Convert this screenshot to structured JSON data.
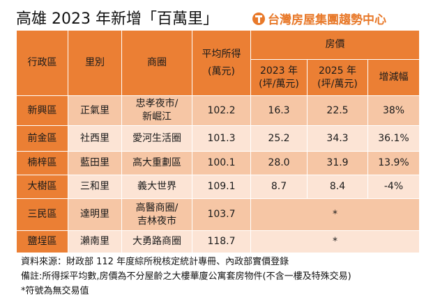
{
  "title": "高雄 2023 年新增「百萬里」",
  "logo_text": "台灣房屋集團趨勢中心",
  "colors": {
    "header": "#eb7f34",
    "row_dark": "#f6c6a5",
    "row_light": "#fce4d5",
    "logo": "#e8792a"
  },
  "table": {
    "headers": {
      "district": "行政區",
      "village": "里別",
      "business_area": "商圈",
      "income": "平均所得",
      "income_unit": "(萬元)",
      "price_group": "房價",
      "y2023": "2023 年",
      "y2023_unit": "(坪/萬元)",
      "y2025": "2025 年",
      "y2025_unit": "(坪/萬元)",
      "change": "增減幅"
    },
    "rows": [
      {
        "district": "新興區",
        "village": "正氣里",
        "area1": "忠孝夜市/",
        "area2": "新崛江",
        "income": "102.2",
        "p2023": "16.3",
        "p2025": "22.5",
        "change": "38%"
      },
      {
        "district": "前金區",
        "village": "社西里",
        "area1": "愛河生活圈",
        "area2": "",
        "income": "101.3",
        "p2023": "25.2",
        "p2025": "34.3",
        "change": "36.1%"
      },
      {
        "district": "楠梓區",
        "village": "藍田里",
        "area1": "高大重劃區",
        "area2": "",
        "income": "100.1",
        "p2023": "28.0",
        "p2025": "31.9",
        "change": "13.9%"
      },
      {
        "district": "大樹區",
        "village": "三和里",
        "area1": "義大世界",
        "area2": "",
        "income": "109.1",
        "p2023": "8.7",
        "p2025": "8.4",
        "change": "-4%"
      },
      {
        "district": "三民區",
        "village": "達明里",
        "area1": "高醫商圈/",
        "area2": "吉林夜市",
        "income": "103.7",
        "no_trade": "*"
      },
      {
        "district": "鹽埕區",
        "village": "瀨南里",
        "area1": "大勇路商圈",
        "area2": "",
        "income": "118.7",
        "no_trade": "*"
      }
    ]
  },
  "notes": [
    "資料來源：財政部 112 年度綜所稅核定統計專冊、內政部實價登錄",
    "備註:所得採平均數,房價為不分屋齡之大樓華廈公寓套房物件(不含一樓及特殊交易)",
    "*符號為無交易值"
  ]
}
